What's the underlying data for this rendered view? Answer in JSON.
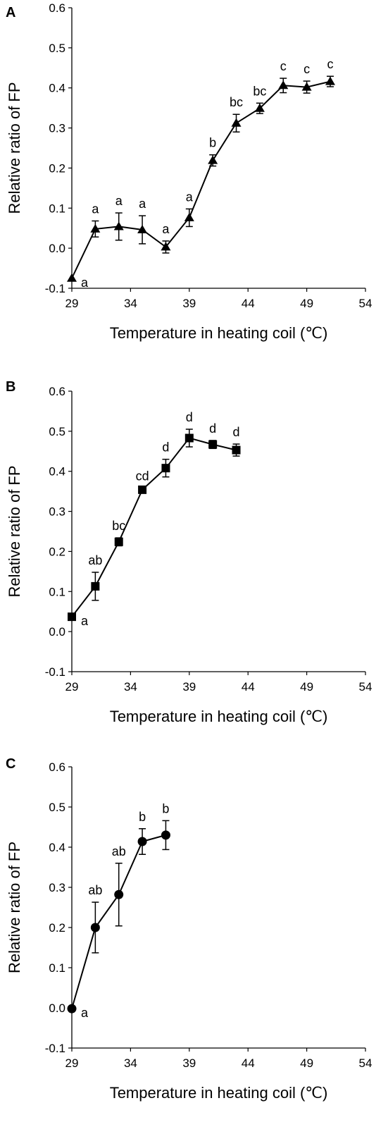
{
  "chart_data": [
    {
      "panel": "A",
      "type": "line",
      "marker": "triangle",
      "xlabel": "Temperature in heating coil (℃)",
      "ylabel": "Relative ratio of FP",
      "xlim": [
        29,
        54
      ],
      "ylim": [
        -0.1,
        0.6
      ],
      "xticks": [
        "29",
        "34",
        "39",
        "44",
        "49",
        "54"
      ],
      "yticks": [
        "-0.1",
        "0.0",
        "0.1",
        "0.2",
        "0.3",
        "0.4",
        "0.5",
        "0.6"
      ],
      "points": [
        {
          "x": 29,
          "y": -0.075,
          "err": 0,
          "label": "a"
        },
        {
          "x": 31,
          "y": 0.048,
          "err": 0.02,
          "label": "a"
        },
        {
          "x": 33,
          "y": 0.054,
          "err": 0.034,
          "label": "a"
        },
        {
          "x": 35,
          "y": 0.046,
          "err": 0.035,
          "label": "a"
        },
        {
          "x": 37,
          "y": 0.003,
          "err": 0.015,
          "label": "a"
        },
        {
          "x": 39,
          "y": 0.076,
          "err": 0.022,
          "label": "a"
        },
        {
          "x": 41,
          "y": 0.219,
          "err": 0.014,
          "label": "b"
        },
        {
          "x": 43,
          "y": 0.312,
          "err": 0.022,
          "label": "bc"
        },
        {
          "x": 45,
          "y": 0.349,
          "err": 0.013,
          "label": "bc"
        },
        {
          "x": 47,
          "y": 0.406,
          "err": 0.018,
          "label": "c"
        },
        {
          "x": 49,
          "y": 0.402,
          "err": 0.015,
          "label": "c"
        },
        {
          "x": 51,
          "y": 0.416,
          "err": 0.013,
          "label": "c"
        }
      ]
    },
    {
      "panel": "B",
      "type": "line",
      "marker": "square",
      "xlabel": "Temperature in heating coil (℃)",
      "ylabel": "Relative ratio of FP",
      "xlim": [
        29,
        54
      ],
      "ylim": [
        -0.1,
        0.6
      ],
      "xticks": [
        "29",
        "34",
        "39",
        "44",
        "49",
        "54"
      ],
      "yticks": [
        "-0.1",
        "0.0",
        "0.1",
        "0.2",
        "0.3",
        "0.4",
        "0.5",
        "0.6"
      ],
      "points": [
        {
          "x": 29,
          "y": 0.037,
          "err": 0,
          "label": "a"
        },
        {
          "x": 31,
          "y": 0.113,
          "err": 0.035,
          "label": "ab"
        },
        {
          "x": 33,
          "y": 0.224,
          "err": 0.01,
          "label": "bc"
        },
        {
          "x": 35,
          "y": 0.354,
          "err": 0.004,
          "label": "cd"
        },
        {
          "x": 37,
          "y": 0.408,
          "err": 0.022,
          "label": "d"
        },
        {
          "x": 39,
          "y": 0.483,
          "err": 0.022,
          "label": "d"
        },
        {
          "x": 41,
          "y": 0.467,
          "err": 0.01,
          "label": "d"
        },
        {
          "x": 43,
          "y": 0.453,
          "err": 0.015,
          "label": "d"
        }
      ]
    },
    {
      "panel": "C",
      "type": "line",
      "marker": "circle",
      "xlabel": "Temperature in heating coil (℃)",
      "ylabel": "Relative ratio of FP",
      "xlim": [
        29,
        54
      ],
      "ylim": [
        -0.1,
        0.6
      ],
      "xticks": [
        "29",
        "34",
        "39",
        "44",
        "49",
        "54"
      ],
      "yticks": [
        "-0.1",
        "0.0",
        "0.1",
        "0.2",
        "0.3",
        "0.4",
        "0.5",
        "0.6"
      ],
      "points": [
        {
          "x": 29,
          "y": -0.002,
          "err": 0,
          "label": "a"
        },
        {
          "x": 31,
          "y": 0.2,
          "err": 0.063,
          "label": "ab"
        },
        {
          "x": 33,
          "y": 0.282,
          "err": 0.078,
          "label": "ab"
        },
        {
          "x": 35,
          "y": 0.414,
          "err": 0.032,
          "label": "b"
        },
        {
          "x": 37,
          "y": 0.43,
          "err": 0.036,
          "label": "b"
        }
      ]
    }
  ]
}
